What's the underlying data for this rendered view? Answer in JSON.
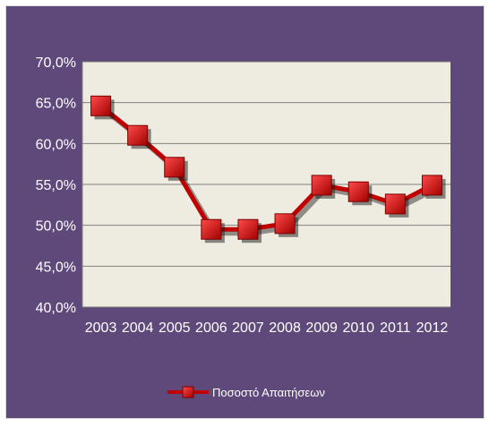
{
  "chart_data": {
    "type": "line",
    "title": "",
    "xlabel": "",
    "ylabel": "",
    "categories": [
      "2003",
      "2004",
      "2005",
      "2006",
      "2007",
      "2008",
      "2009",
      "2010",
      "2011",
      "2012"
    ],
    "series": [
      {
        "name": "Ποσοστό Απαιτήσεων",
        "values": [
          64.6,
          61.0,
          57.1,
          49.5,
          49.5,
          50.2,
          54.9,
          54.1,
          52.6,
          54.9
        ],
        "color": "#c00000"
      }
    ],
    "ylim": [
      40,
      70
    ],
    "yticks": [
      40,
      45,
      50,
      55,
      60,
      65,
      70
    ],
    "ytick_labels": [
      "40,0%",
      "45,0%",
      "50,0%",
      "55,0%",
      "60,0%",
      "65,0%",
      "70,0%"
    ],
    "grid": true,
    "legend_position": "bottom",
    "colors": {
      "background": "#5f497a",
      "plot_area": "#eeece1",
      "gridline": "#808080",
      "marker": "#d81b1b"
    }
  }
}
